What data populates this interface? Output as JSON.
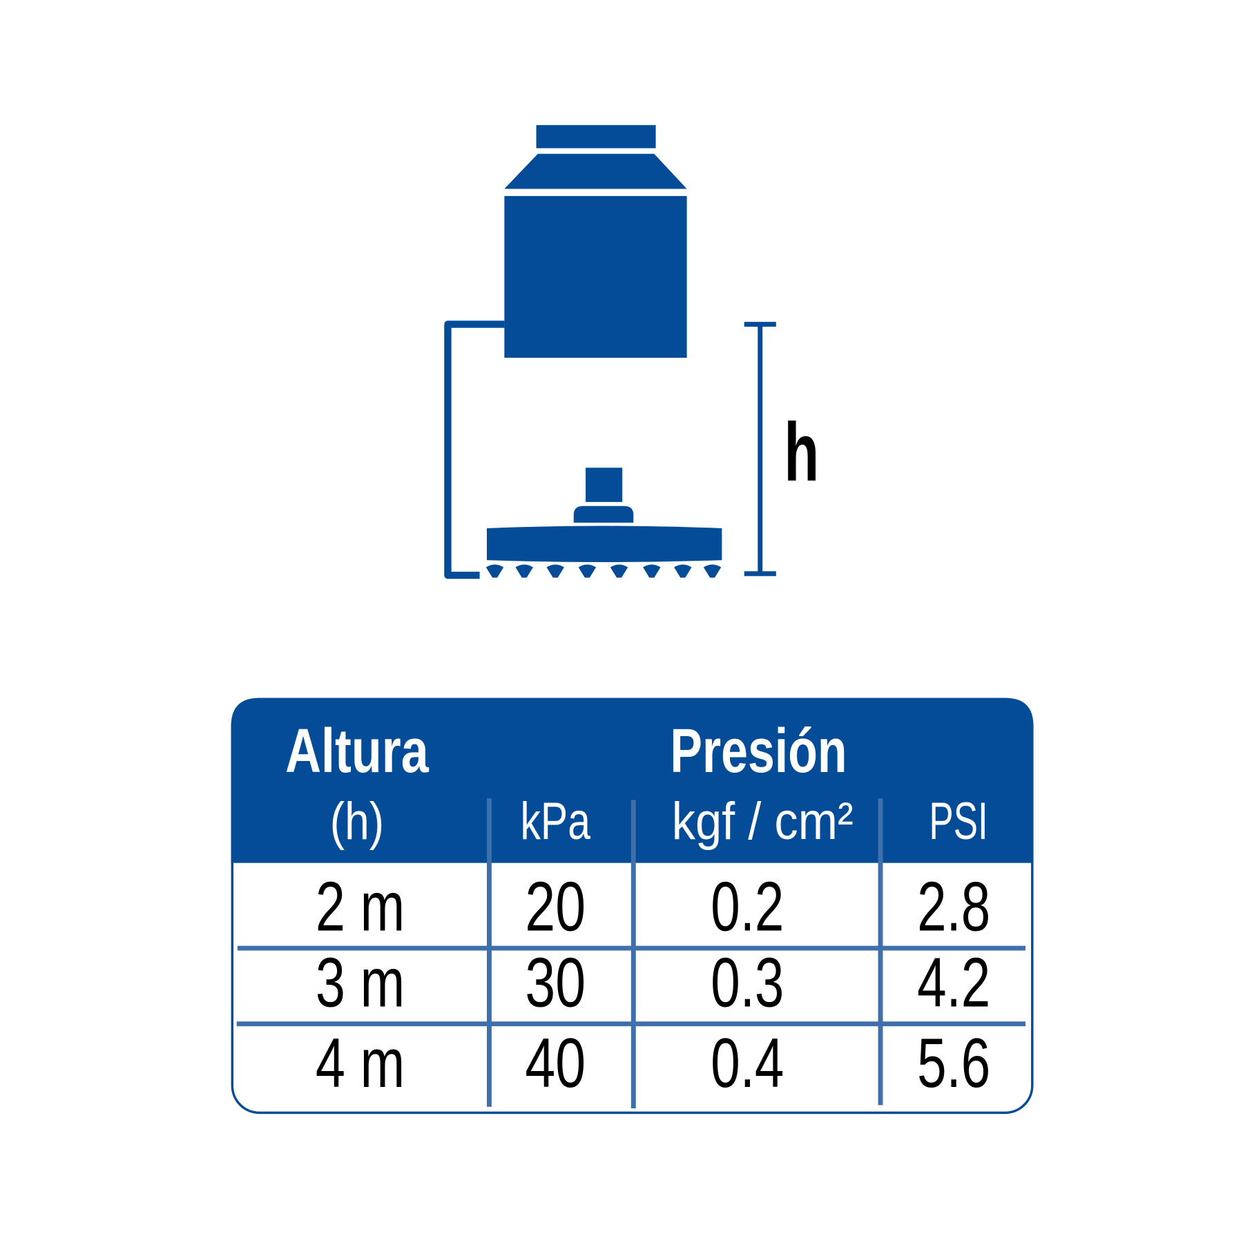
{
  "colors": {
    "primary": "#044c97",
    "grid": "#3f70ab",
    "text": "#000000",
    "header_text": "#ffffff"
  },
  "diagram": {
    "height_label": "h"
  },
  "table": {
    "group_headers": {
      "height": "Altura",
      "pressure": "Presión"
    },
    "columns": [
      "(h)",
      "kPa",
      "kgf / cm²",
      "PSI"
    ],
    "rows": [
      [
        "2 m",
        "20",
        "0.2",
        "2.8"
      ],
      [
        "3 m",
        "30",
        "0.3",
        "4.2"
      ],
      [
        "4 m",
        "40",
        "0.4",
        "5.6"
      ]
    ]
  }
}
